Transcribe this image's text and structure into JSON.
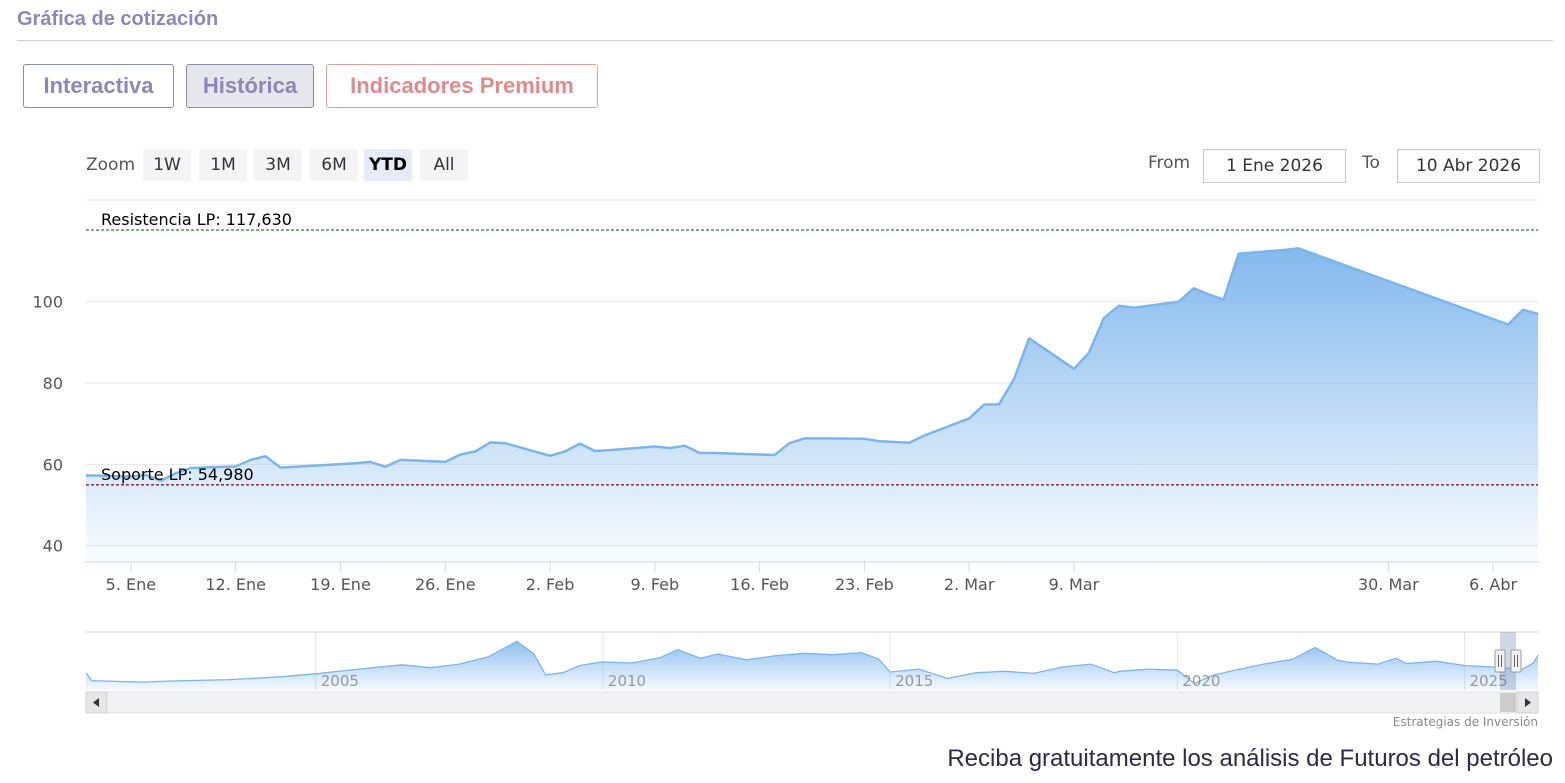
{
  "header": {
    "title": "Gráfica de cotización"
  },
  "tabs": [
    {
      "label": "Interactiva"
    },
    {
      "label": "Histórica"
    },
    {
      "label": "Indicadores Premium"
    }
  ],
  "range_selector": {
    "zoom_label": "Zoom",
    "buttons": [
      "1W",
      "1M",
      "3M",
      "6M",
      "YTD",
      "All"
    ],
    "active": "YTD",
    "from_label": "From",
    "from_value": "1 Ene 2026",
    "to_label": "To",
    "to_value": "10 Abr 2026"
  },
  "credits": "Estrategias de Inversión",
  "promo_text": "Reciba gratuitamente los análisis de Futuros del petróleo",
  "colors": {
    "series": "#7cb5ec",
    "resistance": "#2e7d32",
    "support": "#8b1a1a"
  },
  "chart_data": {
    "type": "area",
    "x_tick_labels": [
      "5. Ene",
      "12. Ene",
      "19. Ene",
      "26. Ene",
      "2. Feb",
      "9. Feb",
      "16. Feb",
      "23. Feb",
      "2. Mar",
      "9. Mar",
      "30. Mar",
      "6. Abr"
    ],
    "x_tick_dates": [
      "2026-01-05",
      "2026-01-12",
      "2026-01-19",
      "2026-01-26",
      "2026-02-02",
      "2026-02-09",
      "2026-02-16",
      "2026-02-23",
      "2026-03-02",
      "2026-03-09",
      "2026-03-30",
      "2026-04-06"
    ],
    "y_ticks": [
      40,
      60,
      80,
      100
    ],
    "ylim": [
      36,
      125
    ],
    "plot_lines": [
      {
        "label": "Resistencia LP: 117,630",
        "value": 117.63,
        "style": "dashed"
      },
      {
        "label": "Soporte LP: 54,980",
        "value": 54.98,
        "style": "dashed"
      }
    ],
    "series": [
      {
        "points": [
          [
            "2026-01-02",
            57.3
          ],
          [
            "2026-01-05",
            57.0
          ],
          [
            "2026-01-06",
            57.4
          ],
          [
            "2026-01-07",
            56.0
          ],
          [
            "2026-01-08",
            57.8
          ],
          [
            "2026-01-09",
            59.1
          ],
          [
            "2026-01-12",
            59.5
          ],
          [
            "2026-01-13",
            61.1
          ],
          [
            "2026-01-14",
            62.0
          ],
          [
            "2026-01-15",
            59.2
          ],
          [
            "2026-01-16",
            59.4
          ],
          [
            "2026-01-20",
            60.3
          ],
          [
            "2026-01-21",
            60.6
          ],
          [
            "2026-01-22",
            59.4
          ],
          [
            "2026-01-23",
            61.1
          ],
          [
            "2026-01-26",
            60.6
          ],
          [
            "2026-01-27",
            62.4
          ],
          [
            "2026-01-28",
            63.2
          ],
          [
            "2026-01-29",
            65.4
          ],
          [
            "2026-01-30",
            65.2
          ],
          [
            "2026-02-02",
            62.1
          ],
          [
            "2026-02-03",
            63.2
          ],
          [
            "2026-02-04",
            65.1
          ],
          [
            "2026-02-05",
            63.3
          ],
          [
            "2026-02-06",
            63.5
          ],
          [
            "2026-02-09",
            64.4
          ],
          [
            "2026-02-10",
            64.0
          ],
          [
            "2026-02-11",
            64.6
          ],
          [
            "2026-02-12",
            62.8
          ],
          [
            "2026-02-13",
            62.8
          ],
          [
            "2026-02-17",
            62.3
          ],
          [
            "2026-02-18",
            65.2
          ],
          [
            "2026-02-19",
            66.4
          ],
          [
            "2026-02-20",
            66.4
          ],
          [
            "2026-02-23",
            66.3
          ],
          [
            "2026-02-24",
            65.7
          ],
          [
            "2026-02-25",
            65.5
          ],
          [
            "2026-02-26",
            65.3
          ],
          [
            "2026-02-27",
            67.1
          ],
          [
            "2026-03-02",
            71.3
          ],
          [
            "2026-03-03",
            74.7
          ],
          [
            "2026-03-04",
            74.8
          ],
          [
            "2026-03-05",
            81.0
          ],
          [
            "2026-03-06",
            91.0
          ],
          [
            "2026-03-09",
            83.5
          ],
          [
            "2026-03-10",
            87.4
          ],
          [
            "2026-03-11",
            96.0
          ],
          [
            "2026-03-12",
            99.0
          ],
          [
            "2026-03-13",
            98.5
          ],
          [
            "2026-03-16",
            100.0
          ],
          [
            "2026-03-17",
            103.3
          ],
          [
            "2026-03-18",
            101.8
          ],
          [
            "2026-03-19",
            100.5
          ],
          [
            "2026-03-20",
            111.8
          ],
          [
            "2026-03-23",
            112.7
          ],
          [
            "2026-03-24",
            113.1
          ],
          [
            "2026-04-07",
            94.4
          ],
          [
            "2026-04-08",
            98.0
          ],
          [
            "2026-04-09",
            97.0
          ]
        ]
      }
    ],
    "navigator": {
      "x_tick_labels": [
        "2005",
        "2010",
        "2015",
        "2020",
        "2025"
      ],
      "points": [
        [
          2001.0,
          48
        ],
        [
          2001.1,
          26
        ],
        [
          2001.5,
          24
        ],
        [
          2002.0,
          22
        ],
        [
          2002.5,
          25
        ],
        [
          2003.0,
          27
        ],
        [
          2003.5,
          29
        ],
        [
          2004.0,
          33
        ],
        [
          2004.5,
          38
        ],
        [
          2005.0,
          45
        ],
        [
          2005.5,
          54
        ],
        [
          2006.0,
          62
        ],
        [
          2006.5,
          70
        ],
        [
          2007.0,
          62
        ],
        [
          2007.5,
          72
        ],
        [
          2008.0,
          92
        ],
        [
          2008.5,
          135
        ],
        [
          2008.8,
          100
        ],
        [
          2009.0,
          42
        ],
        [
          2009.3,
          48
        ],
        [
          2009.6,
          68
        ],
        [
          2010.0,
          78
        ],
        [
          2010.5,
          75
        ],
        [
          2011.0,
          90
        ],
        [
          2011.3,
          112
        ],
        [
          2011.7,
          88
        ],
        [
          2012.0,
          100
        ],
        [
          2012.5,
          84
        ],
        [
          2013.0,
          95
        ],
        [
          2013.5,
          102
        ],
        [
          2014.0,
          98
        ],
        [
          2014.5,
          104
        ],
        [
          2014.8,
          86
        ],
        [
          2015.0,
          50
        ],
        [
          2015.5,
          58
        ],
        [
          2016.0,
          32
        ],
        [
          2016.5,
          48
        ],
        [
          2017.0,
          52
        ],
        [
          2017.5,
          46
        ],
        [
          2018.0,
          64
        ],
        [
          2018.5,
          72
        ],
        [
          2018.9,
          48
        ],
        [
          2019.0,
          52
        ],
        [
          2019.5,
          58
        ],
        [
          2020.0,
          55
        ],
        [
          2020.3,
          18
        ],
        [
          2020.6,
          40
        ],
        [
          2021.0,
          55
        ],
        [
          2021.5,
          72
        ],
        [
          2022.0,
          85
        ],
        [
          2022.4,
          118
        ],
        [
          2022.8,
          82
        ],
        [
          2023.0,
          77
        ],
        [
          2023.5,
          72
        ],
        [
          2023.8,
          88
        ],
        [
          2024.0,
          73
        ],
        [
          2024.5,
          80
        ],
        [
          2025.0,
          68
        ],
        [
          2025.5,
          64
        ],
        [
          2026.0,
          57
        ],
        [
          2026.2,
          75
        ],
        [
          2026.28,
          97
        ]
      ],
      "selected_range": [
        2026.0,
        2026.28
      ],
      "xlim": [
        2001.0,
        2026.28
      ]
    }
  }
}
